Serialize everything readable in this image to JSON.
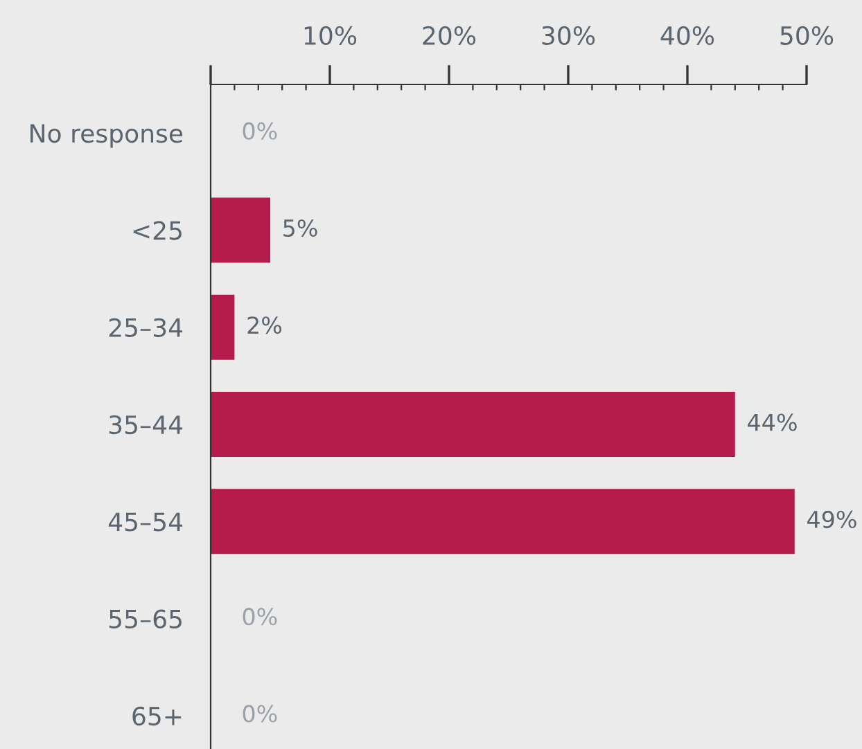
{
  "chart_data": {
    "type": "bar",
    "orientation": "horizontal",
    "categories": [
      "No response",
      "<25",
      "25–34",
      "35–44",
      "45–54",
      "55–65",
      "65+"
    ],
    "values": [
      0,
      5,
      2,
      44,
      49,
      0,
      0
    ],
    "value_labels": [
      "0%",
      "5%",
      "2%",
      "44%",
      "49%",
      "0%",
      "0%"
    ],
    "color": "#b51c4b",
    "xlim": [
      0,
      50
    ],
    "xticks": [
      {
        "value": 0,
        "label": null
      },
      {
        "value": 10,
        "label": "10%"
      },
      {
        "value": 20,
        "label": "20%"
      },
      {
        "value": 30,
        "label": "30%"
      },
      {
        "value": 40,
        "label": "40%"
      },
      {
        "value": 50,
        "label": "50%"
      }
    ],
    "grid": false,
    "legend": false
  }
}
